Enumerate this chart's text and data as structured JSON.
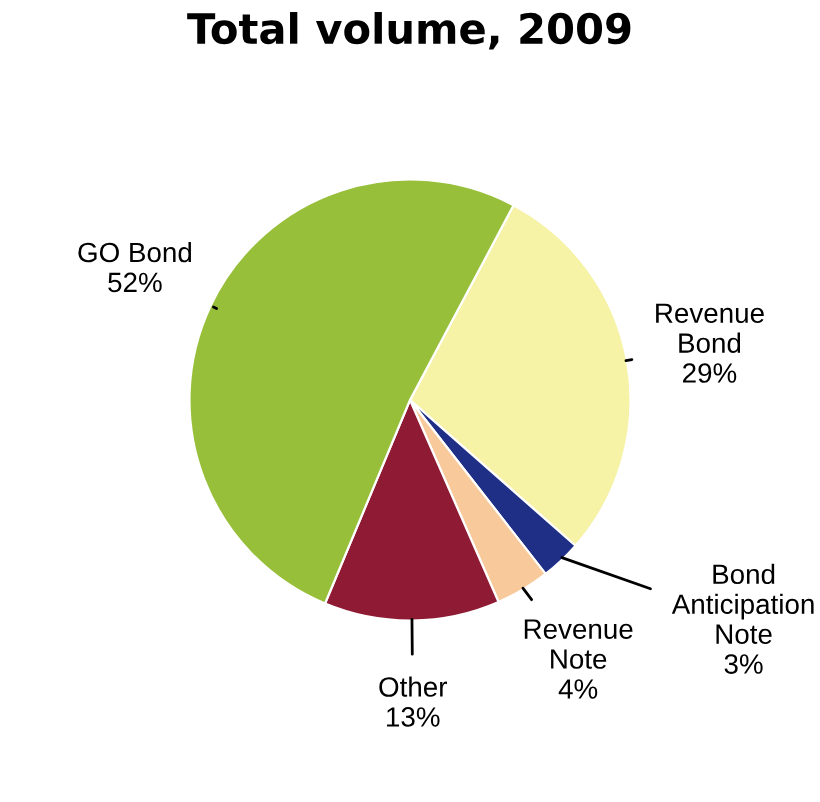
{
  "chart_data": {
    "type": "pie",
    "title": "Total volume, 2009",
    "categories": [
      "Revenue\nBond",
      "Bond\nAnticipation\nNote",
      "Revenue\nNote",
      "Other",
      "GO Bond"
    ],
    "values": [
      29,
      3,
      4,
      13,
      52
    ],
    "value_labels": [
      "29%",
      "3%",
      "4%",
      "13%",
      "52%"
    ],
    "colors": [
      "#f6f2a6",
      "#1f2f86",
      "#f8c99a",
      "#8e1b33",
      "#98bf3a"
    ]
  }
}
